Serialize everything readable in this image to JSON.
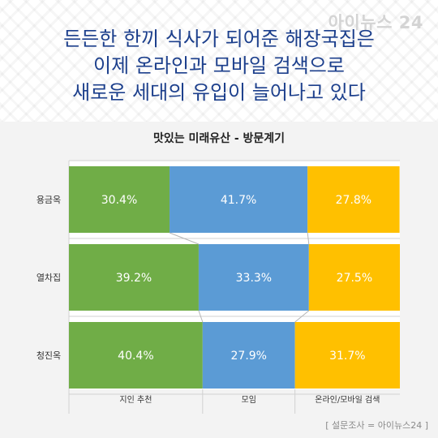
{
  "brand": "아이뉴스 24",
  "headline": [
    "든든한 한끼 식사가 되어준 해장국집은",
    "이제 온라인과 모바일 검색으로",
    "새로운 세대의 유입이 늘어나고 있다"
  ],
  "source": "[ 설문조사 = 아이뉴스24 ]",
  "colors": {
    "green": "#70ad47",
    "blue": "#5b9bd5",
    "yellow": "#ffc000"
  },
  "chart_data": {
    "type": "bar",
    "orientation": "horizontal",
    "stacked": true,
    "title": "맛있는 미래유산 - 방문계기",
    "categories": [
      "용금옥",
      "열차집",
      "청진옥"
    ],
    "series": [
      {
        "name": "지인 추천",
        "values": [
          30.4,
          39.2,
          40.4
        ],
        "color": "#70ad47"
      },
      {
        "name": "모임",
        "values": [
          41.7,
          33.3,
          27.9
        ],
        "color": "#5b9bd5"
      },
      {
        "name": "온라인/모바일 검색",
        "values": [
          27.8,
          27.5,
          31.7
        ],
        "color": "#ffc000"
      }
    ],
    "value_suffix": "%",
    "xlim": [
      0,
      100
    ],
    "legend": "bottom",
    "grid": false
  }
}
